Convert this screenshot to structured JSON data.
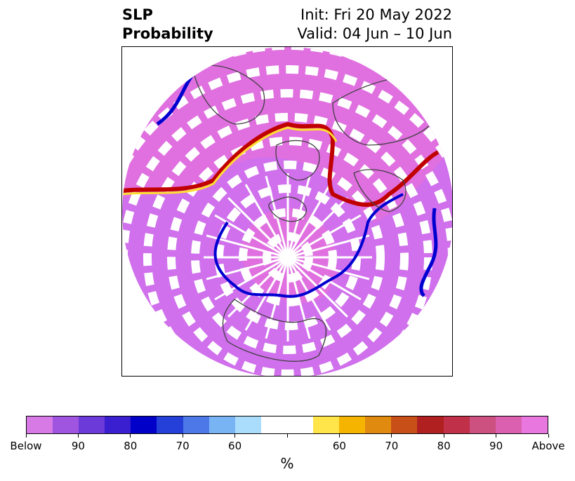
{
  "header": {
    "variable": "SLP",
    "product": "Probability",
    "init": "Init: Fri 20 May 2022",
    "valid": "Valid: 04 Jun – 10 Jun"
  },
  "map": {
    "projection": "north-polar-stereographic",
    "palette": {
      "above_pink": "#e070e0",
      "below_violet": "#d070ec",
      "coastline": "#404040",
      "boundary_blue": "#0000d0",
      "boundary_red": "#c00000",
      "boundary_yellow": "#ffdd33"
    }
  },
  "colorbar": {
    "colors": [
      "#d77ae6",
      "#a055e0",
      "#6c3ad8",
      "#3a1fd0",
      "#0000c8",
      "#2440d8",
      "#4c78e8",
      "#78b4f4",
      "#aadcfc",
      "#ffffff",
      "#ffffff",
      "#ffe44a",
      "#f4b400",
      "#e08a10",
      "#c85018",
      "#b02020",
      "#c03048",
      "#cc5080",
      "#dc60b0",
      "#e878e0"
    ],
    "tick_labels": [
      "Below",
      "90",
      "80",
      "70",
      "60",
      "",
      "60",
      "70",
      "80",
      "90",
      "Above"
    ],
    "unit": "%"
  }
}
